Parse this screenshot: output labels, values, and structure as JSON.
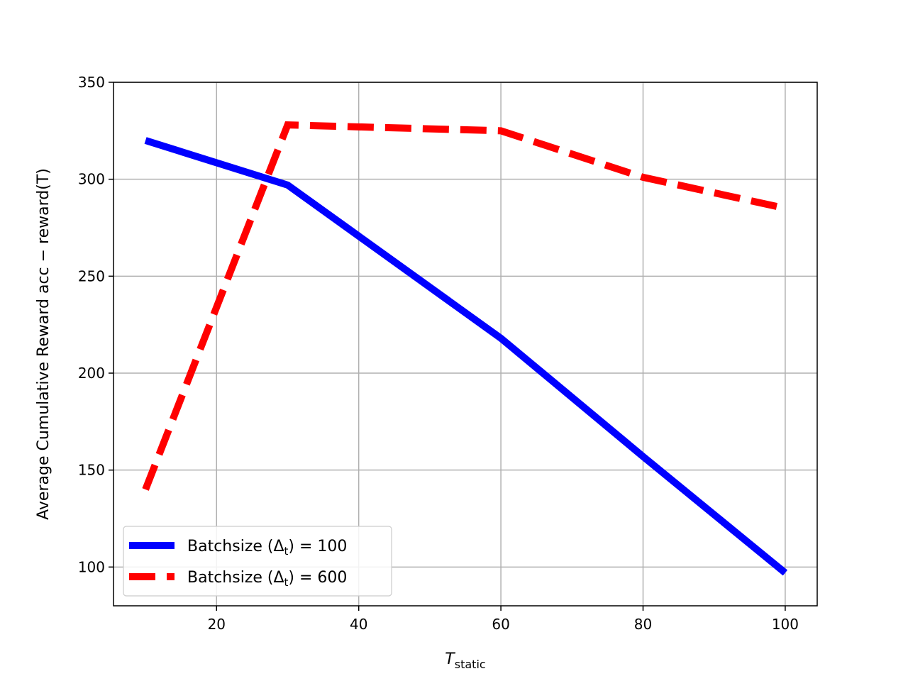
{
  "chart_data": {
    "type": "line",
    "title": "",
    "xlabel": {
      "main": "T",
      "subscript": "static"
    },
    "ylabel": "Average Cumulative Reward acc − reward(T)",
    "xlim": [
      5.5,
      104.5
    ],
    "ylim": [
      80,
      350
    ],
    "xticks": [
      20,
      40,
      60,
      80,
      100
    ],
    "yticks": [
      100,
      150,
      200,
      250,
      300,
      350
    ],
    "grid": true,
    "legend_position": "lower left",
    "x": [
      10,
      30,
      60,
      80,
      100
    ],
    "series": [
      {
        "name": "Batchsize (Δₜ) = 100",
        "label_prefix": "Batchsize (Δ",
        "label_sub": "t",
        "label_suffix": ") = 100",
        "values": [
          320,
          297,
          218,
          157,
          97
        ],
        "color": "#0000ff",
        "style": "solid"
      },
      {
        "name": "Batchsize (Δₜ) = 600",
        "label_prefix": "Batchsize (Δ",
        "label_sub": "t",
        "label_suffix": ") = 600",
        "values": [
          140,
          328,
          325,
          301,
          285
        ],
        "color": "#ff0000",
        "style": "dashed"
      }
    ]
  }
}
